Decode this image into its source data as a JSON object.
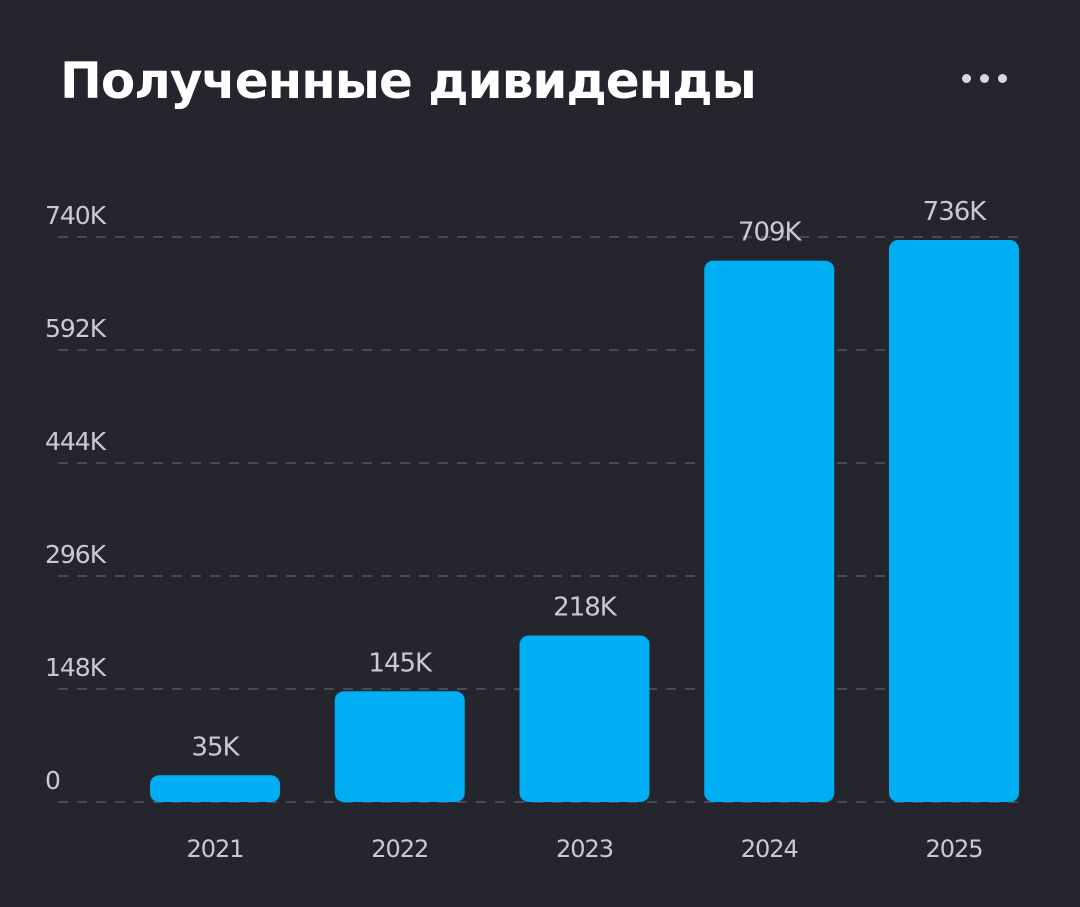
{
  "title": "Полученные дивиденды",
  "more_icon": "more-horizontal-icon",
  "colors": {
    "background": "#25252e",
    "bar": "#00aef3",
    "grid": "#4a4a55",
    "text": "#c9c9d1",
    "title": "#ffffff"
  },
  "chart_data": {
    "type": "bar",
    "title": "Полученные дивиденды",
    "xlabel": "",
    "ylabel": "",
    "categories": [
      "2021",
      "2022",
      "2023",
      "2024",
      "2025"
    ],
    "values": [
      35,
      145,
      218,
      709,
      736
    ],
    "value_labels": [
      "35K",
      "145K",
      "218K",
      "709K",
      "736K"
    ],
    "y_ticks": [
      0,
      148,
      296,
      444,
      592,
      740
    ],
    "y_tick_labels": [
      "0",
      "148K",
      "296K",
      "444K",
      "592K",
      "740K"
    ],
    "ylim": [
      0,
      740
    ],
    "unit": "K",
    "grid": true,
    "grid_style": "dashed",
    "legend": "none"
  }
}
